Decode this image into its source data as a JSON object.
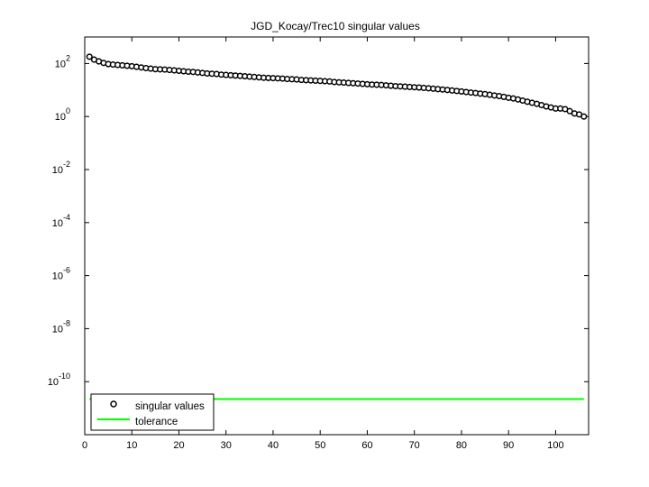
{
  "chart_data": {
    "type": "scatter",
    "title": "JGD_Kocay/Trec10 singular values",
    "xlabel": "",
    "ylabel": "",
    "xlim": [
      0,
      107
    ],
    "ylim": [
      1e-12,
      1000.0
    ],
    "yscale": "log",
    "xticks": [
      0,
      10,
      20,
      30,
      40,
      50,
      60,
      70,
      80,
      90,
      100
    ],
    "yticks": [
      {
        "value": 100.0,
        "base": "10",
        "exp": "2"
      },
      {
        "value": 1.0,
        "base": "10",
        "exp": "0"
      },
      {
        "value": 0.01,
        "base": "10",
        "exp": "-2"
      },
      {
        "value": 0.0001,
        "base": "10",
        "exp": "-4"
      },
      {
        "value": 1e-06,
        "base": "10",
        "exp": "-6"
      },
      {
        "value": 1e-08,
        "base": "10",
        "exp": "-8"
      },
      {
        "value": 1e-10,
        "base": "10",
        "exp": "-10"
      }
    ],
    "grid": false,
    "legend_position": "bottom-left",
    "series": [
      {
        "name": "singular values",
        "marker": "circle",
        "color": "#000000",
        "x": [
          1,
          2,
          3,
          4,
          5,
          6,
          7,
          8,
          9,
          10,
          11,
          12,
          13,
          14,
          15,
          16,
          17,
          18,
          19,
          20,
          21,
          22,
          23,
          24,
          25,
          26,
          27,
          28,
          29,
          30,
          31,
          32,
          33,
          34,
          35,
          36,
          37,
          38,
          39,
          40,
          41,
          42,
          43,
          44,
          45,
          46,
          47,
          48,
          49,
          50,
          51,
          52,
          53,
          54,
          55,
          56,
          57,
          58,
          59,
          60,
          61,
          62,
          63,
          64,
          65,
          66,
          67,
          68,
          69,
          70,
          71,
          72,
          73,
          74,
          75,
          76,
          77,
          78,
          79,
          80,
          81,
          82,
          83,
          84,
          85,
          86,
          87,
          88,
          89,
          90,
          91,
          92,
          93,
          94,
          95,
          96,
          97,
          98,
          99,
          100,
          101,
          102,
          103,
          104,
          105,
          106
        ],
        "values": [
          180,
          140,
          120,
          105,
          95,
          91,
          88,
          85,
          82,
          79,
          75,
          71,
          67,
          64,
          61,
          60,
          59,
          57,
          55,
          53,
          51,
          49,
          48,
          46,
          44,
          42,
          41,
          40,
          38,
          37,
          36,
          35,
          34,
          33,
          32,
          31,
          30,
          29,
          28.5,
          28,
          27.5,
          27,
          26,
          25.5,
          25,
          24,
          23.5,
          23,
          22.5,
          22,
          21.5,
          21,
          20,
          19.5,
          19,
          18.5,
          18,
          17.5,
          17,
          16.5,
          16,
          15.8,
          15.5,
          15,
          14.5,
          14,
          13.7,
          13.4,
          13,
          12.7,
          12.4,
          12,
          11.6,
          11.2,
          10.8,
          10.4,
          10,
          9.6,
          9.2,
          8.8,
          8.4,
          8,
          7.7,
          7.3,
          7,
          6.6,
          6.2,
          5.9,
          5.5,
          5.1,
          4.8,
          4.4,
          4,
          3.6,
          3.3,
          3,
          2.7,
          2.4,
          2.2,
          2,
          2,
          1.9,
          1.6,
          1.3,
          1.2,
          1
        ]
      },
      {
        "name": "tolerance",
        "type": "line",
        "color": "#00ff00",
        "x": [
          1,
          106
        ],
        "values": [
          2.2e-11,
          2.2e-11
        ]
      }
    ]
  }
}
